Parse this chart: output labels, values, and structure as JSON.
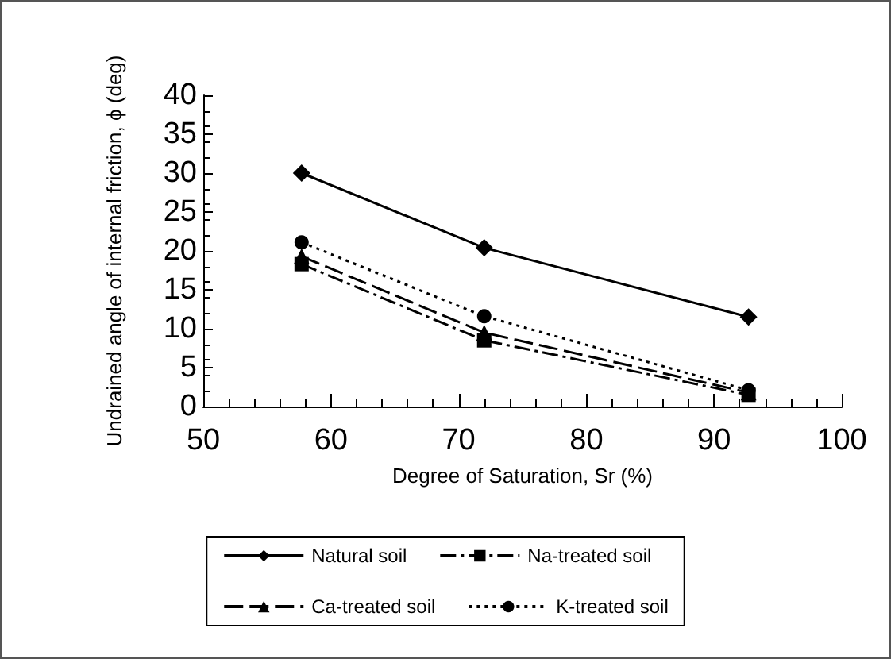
{
  "chart_data": {
    "type": "line",
    "xlabel": "Degree of Saturation, Sr (%)",
    "ylabel": "Undrained angle of internal friction, ϕ (deg)",
    "x": [
      57.7,
      72,
      92.7
    ],
    "series": [
      {
        "name": "Natural soil",
        "color": "#000000",
        "values": [
          30,
          20.4,
          11.5
        ],
        "marker": "diamond",
        "line_style": "solid"
      },
      {
        "name": "Na-treated soil",
        "color": "#000000",
        "values": [
          18.3,
          8.5,
          1.5
        ],
        "marker": "square",
        "line_style": "dashdot"
      },
      {
        "name": "Ca-treated soil",
        "color": "#000000",
        "values": [
          19.3,
          9.5,
          1.8
        ],
        "marker": "triangle",
        "line_style": "dashed"
      },
      {
        "name": "K-treated soil",
        "color": "#000000",
        "values": [
          21.1,
          11.6,
          2.1
        ],
        "marker": "circle",
        "line_style": "dotted"
      }
    ],
    "xlim": [
      50,
      100
    ],
    "xticks": [
      50,
      60,
      70,
      80,
      90,
      100
    ],
    "ylim": [
      0,
      40
    ],
    "yticks": [
      0,
      5,
      10,
      15,
      20,
      25,
      30,
      35,
      40
    ],
    "grid": false,
    "legend": "bottom"
  }
}
